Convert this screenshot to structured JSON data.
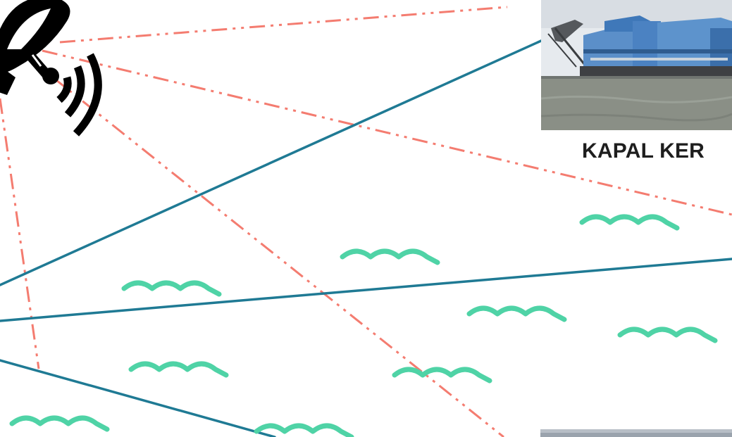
{
  "labels": {
    "vessel_label": "KAPAL KER"
  },
  "icons": {
    "antenna": "satellite-dish-icon",
    "wave": "wave-icon"
  },
  "colors": {
    "signal_line": "#1f7a94",
    "dashed_line": "#f47c70",
    "wave": "#4fd3a6",
    "icon": "#000000",
    "water": "#8a8f86",
    "sky": "#e6eaee",
    "building": "#3f78b9"
  }
}
